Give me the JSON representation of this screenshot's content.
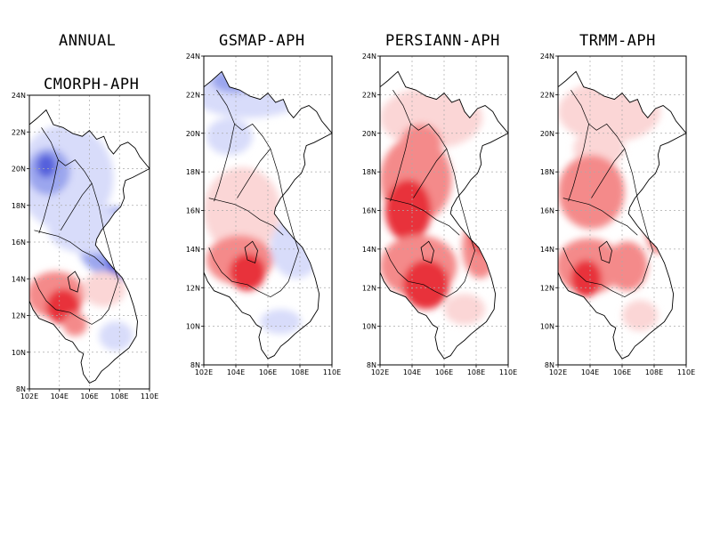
{
  "page_title": "ANNUAL",
  "panels": [
    {
      "title": "CMORPH-APH",
      "lat_labels": [
        "24N",
        "22N",
        "20N",
        "18N",
        "16N",
        "14N",
        "12N",
        "10N",
        "8N"
      ],
      "lon_labels": [
        "102E",
        "104E",
        "106E",
        "108E",
        "110E"
      ]
    },
    {
      "title": "GSMAP-APH",
      "lat_labels": [
        "24N",
        "22N",
        "20N",
        "18N",
        "16N",
        "14N",
        "12N",
        "10N",
        "8N"
      ],
      "lon_labels": [
        "102E",
        "104E",
        "106E",
        "108E",
        "110E"
      ]
    },
    {
      "title": "PERSIANN-APH",
      "lat_labels": [
        "24N",
        "22N",
        "20N",
        "18N",
        "16N",
        "14N",
        "12N",
        "10N",
        "8N"
      ],
      "lon_labels": [
        "102E",
        "104E",
        "106E",
        "108E",
        "110E"
      ]
    },
    {
      "title": "TRMM-APH",
      "lat_labels": [
        "24N",
        "22N",
        "20N",
        "18N",
        "16N",
        "14N",
        "12N",
        "10N",
        "8N"
      ],
      "lon_labels": [
        "102E",
        "104E",
        "106E",
        "108E",
        "110E"
      ]
    }
  ],
  "colors": {
    "strong_positive": "#e8303a",
    "positive": "#f48a8a",
    "weak_positive": "#fbd6d6",
    "weak_negative": "#d8dcfa",
    "negative": "#9ba6ee",
    "strong_negative": "#5560dc",
    "grid": "#aaaaaa",
    "border": "#000000"
  }
}
